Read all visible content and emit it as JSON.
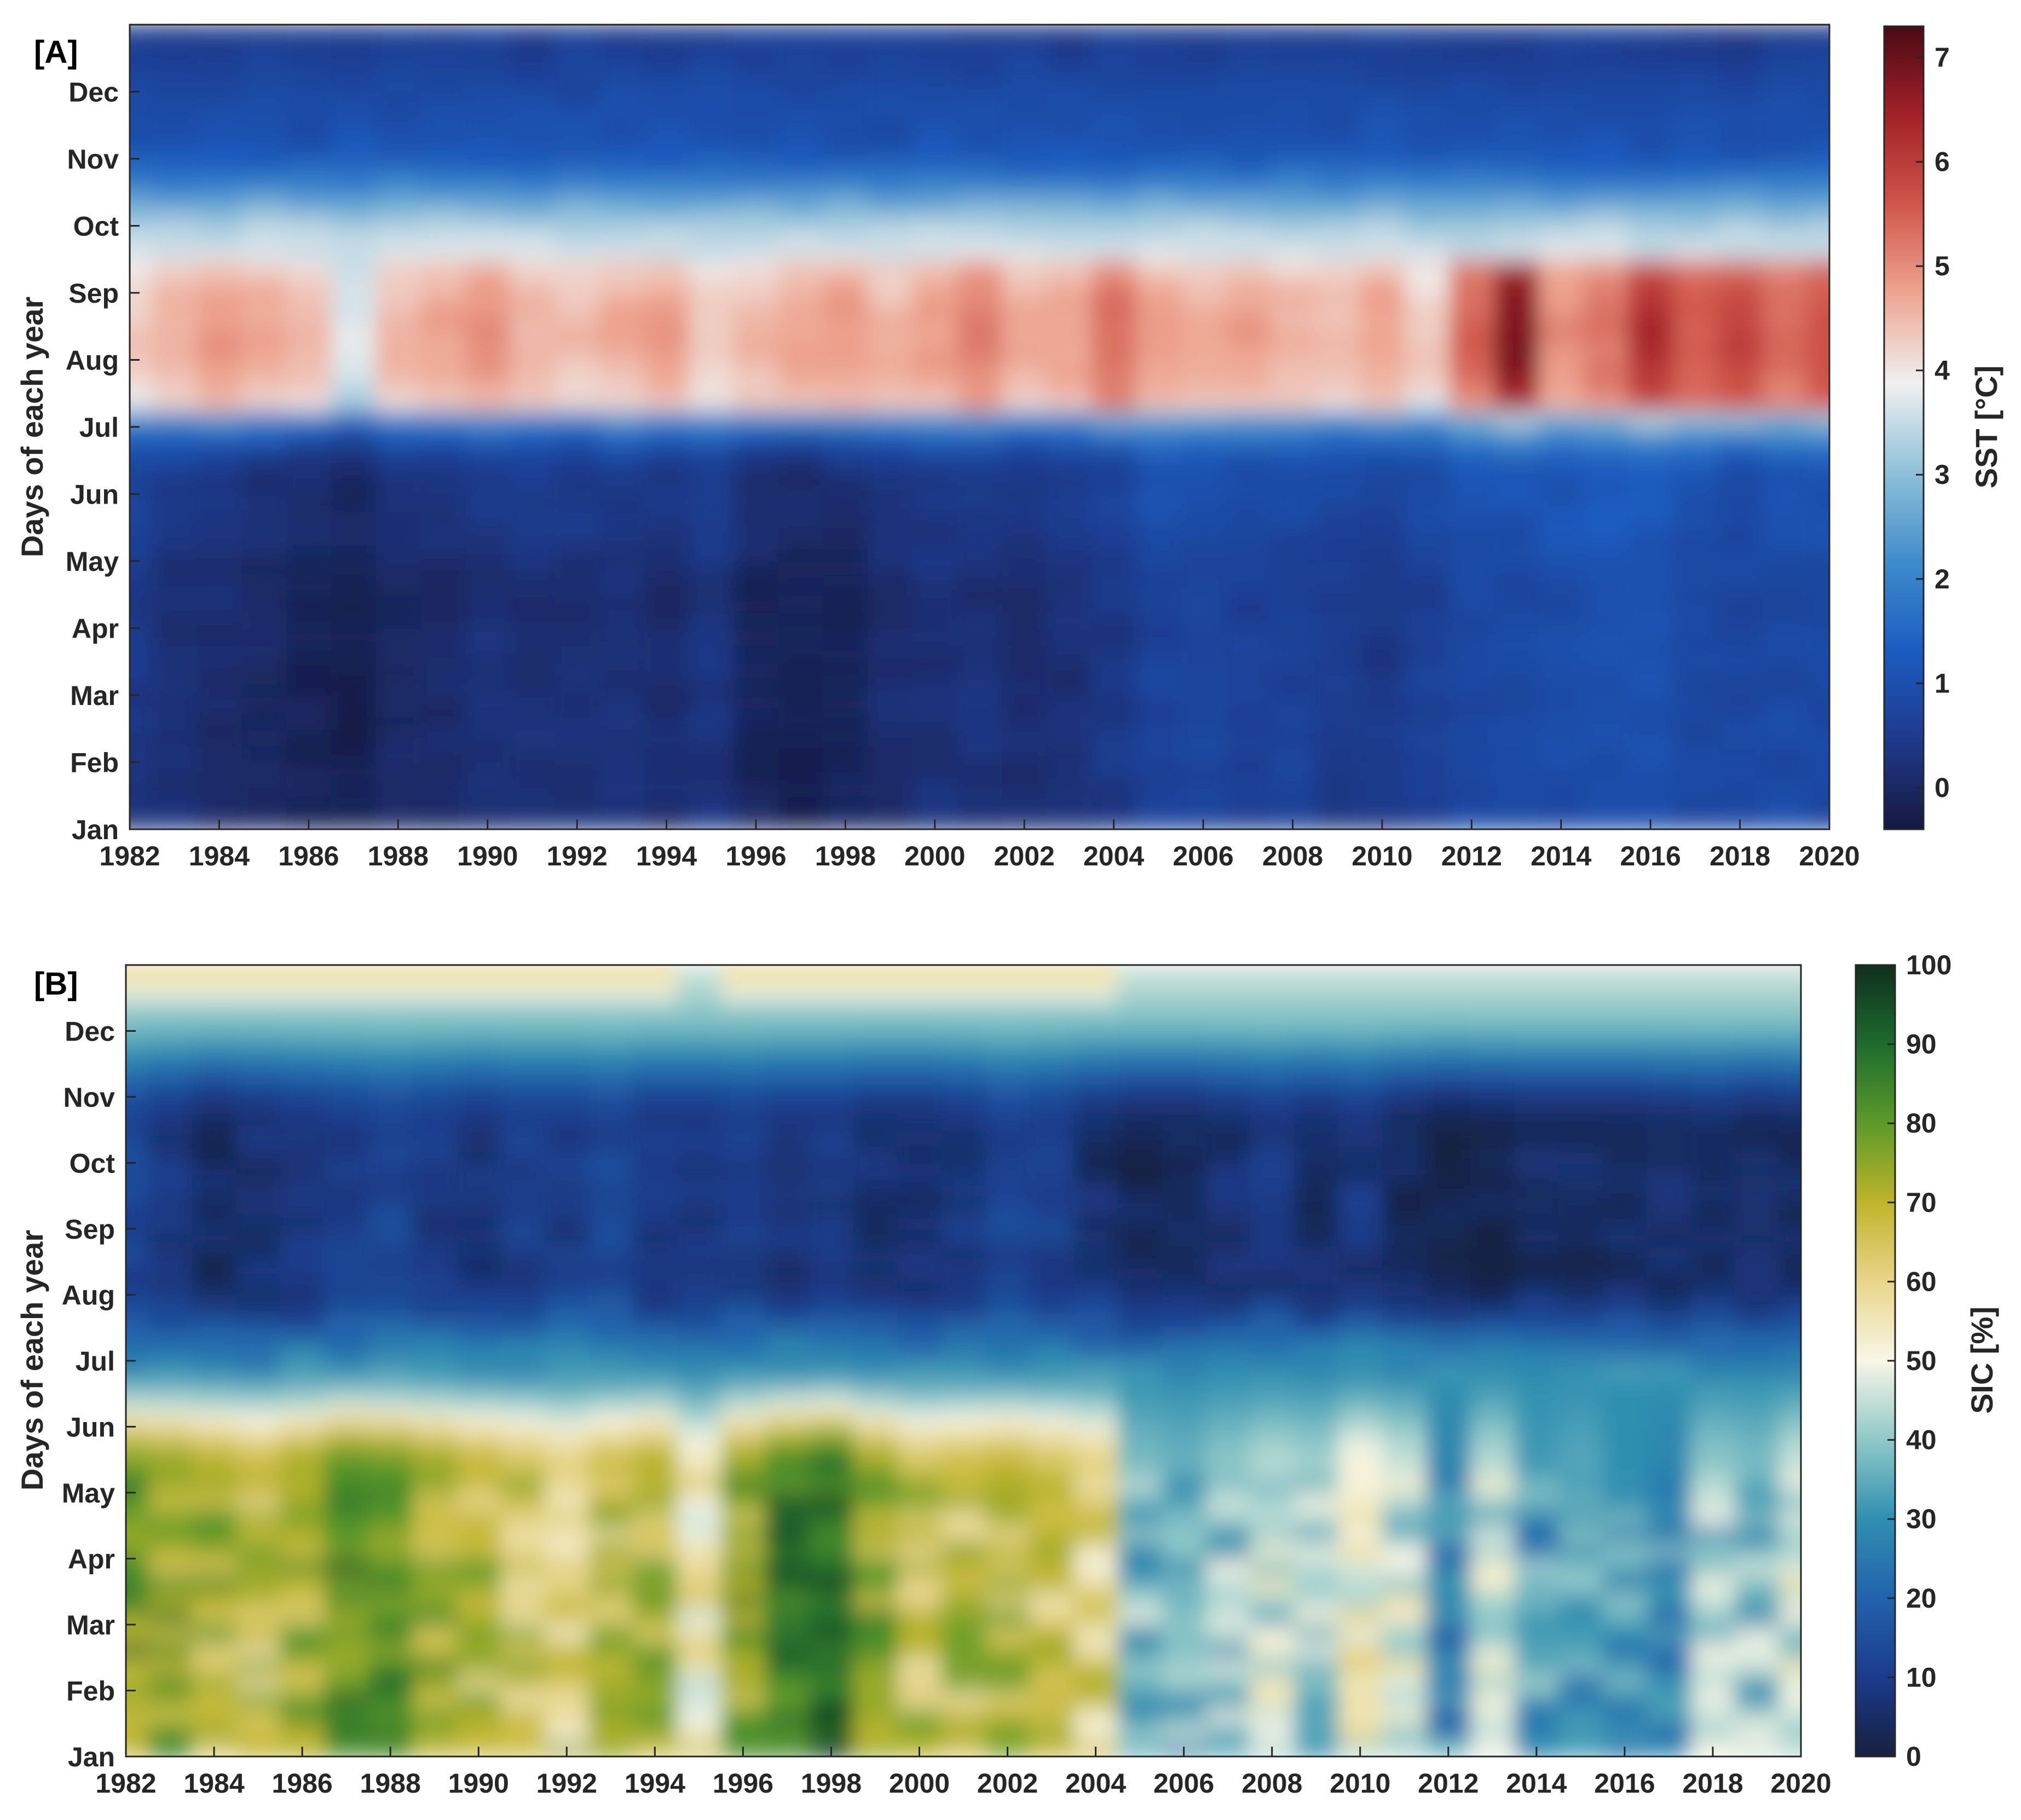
{
  "chart_data": [
    {
      "panel_label": "[A]",
      "type": "heatmap",
      "xlabel": "",
      "ylabel": "Days of each year",
      "x_ticks": [
        "1982",
        "1984",
        "1986",
        "1988",
        "1990",
        "1992",
        "1994",
        "1996",
        "1998",
        "2000",
        "2002",
        "2004",
        "2006",
        "2008",
        "2010",
        "2012",
        "2014",
        "2016",
        "2018",
        "2020"
      ],
      "y_ticks": [
        "Jan",
        "Feb",
        "Mar",
        "Apr",
        "May",
        "Jun",
        "Jul",
        "Aug",
        "Sep",
        "Oct",
        "Nov",
        "Dec"
      ],
      "xlim": [
        1982,
        2020
      ],
      "colorbar": {
        "label": "SST [°C]",
        "range": [
          -0.4,
          7.3
        ],
        "ticks": [
          "0",
          "1",
          "2",
          "3",
          "4",
          "5",
          "6",
          "7"
        ],
        "colormap": [
          "#16193f",
          "#1f3a8c",
          "#1b5cc0",
          "#3f8ccc",
          "#8fc0d8",
          "#f0f0f0",
          "#eea590",
          "#d0564a",
          "#a32129",
          "#4a0a14"
        ]
      },
      "years": [
        1982,
        1983,
        1984,
        1985,
        1986,
        1987,
        1988,
        1989,
        1990,
        1991,
        1992,
        1993,
        1994,
        1995,
        1996,
        1997,
        1998,
        1999,
        2000,
        2001,
        2002,
        2003,
        2004,
        2005,
        2006,
        2007,
        2008,
        2009,
        2010,
        2011,
        2012,
        2013,
        2014,
        2015,
        2016,
        2017,
        2018,
        2019,
        2020
      ],
      "months": [
        "Jan",
        "Feb",
        "Mar",
        "Apr",
        "May",
        "Jun",
        "Jul",
        "Aug",
        "Sep",
        "Oct",
        "Nov",
        "Dec"
      ],
      "summer_peak_by_year": [
        4.3,
        4.6,
        4.9,
        4.7,
        4.5,
        3.8,
        4.6,
        4.8,
        5.0,
        4.6,
        4.5,
        4.7,
        4.8,
        4.3,
        4.6,
        4.8,
        4.9,
        4.6,
        4.8,
        5.2,
        4.7,
        4.8,
        5.4,
        4.8,
        4.7,
        4.8,
        4.6,
        4.5,
        4.8,
        4.3,
        5.5,
        6.8,
        5.0,
        5.3,
        6.3,
        5.6,
        5.9,
        5.4,
        5.8
      ],
      "winter_min_by_year": [
        0.4,
        0.2,
        0.1,
        0.0,
        -0.1,
        -0.2,
        0.0,
        0.1,
        0.2,
        0.2,
        0.2,
        0.2,
        0.1,
        0.3,
        -0.1,
        -0.2,
        -0.1,
        0.1,
        0.2,
        0.2,
        0.1,
        0.2,
        0.4,
        0.7,
        0.7,
        0.6,
        0.6,
        0.5,
        0.4,
        0.6,
        0.8,
        0.8,
        0.9,
        1.0,
        1.0,
        0.8,
        0.7,
        0.8,
        0.8
      ]
    },
    {
      "panel_label": "[B]",
      "type": "heatmap",
      "xlabel": "",
      "ylabel": "Days of each year",
      "x_ticks": [
        "1982",
        "1984",
        "1986",
        "1988",
        "1990",
        "1992",
        "1994",
        "1996",
        "1998",
        "2000",
        "2002",
        "2004",
        "2006",
        "2008",
        "2010",
        "2012",
        "2014",
        "2016",
        "2018",
        "2020"
      ],
      "y_ticks": [
        "Jan",
        "Feb",
        "Mar",
        "Apr",
        "May",
        "Jun",
        "Jul",
        "Aug",
        "Sep",
        "Oct",
        "Nov",
        "Dec"
      ],
      "xlim": [
        1982,
        2020
      ],
      "colorbar": {
        "label": "SIC [%]",
        "range": [
          0,
          100
        ],
        "ticks": [
          "0",
          "10",
          "20",
          "30",
          "40",
          "50",
          "60",
          "70",
          "80",
          "90",
          "100"
        ],
        "colormap": [
          "#17203f",
          "#1b3b8c",
          "#2262ad",
          "#2f8fb0",
          "#8fc8c8",
          "#f8f6e6",
          "#e8d58a",
          "#bfb42b",
          "#5c9a2a",
          "#1e6b2e",
          "#0f2f1d"
        ]
      },
      "years": [
        1982,
        1983,
        1984,
        1985,
        1986,
        1987,
        1988,
        1989,
        1990,
        1991,
        1992,
        1993,
        1994,
        1995,
        1996,
        1997,
        1998,
        1999,
        2000,
        2001,
        2002,
        2003,
        2004,
        2005,
        2006,
        2007,
        2008,
        2009,
        2010,
        2011,
        2012,
        2013,
        2014,
        2015,
        2016,
        2017,
        2018,
        2019,
        2020
      ],
      "months": [
        "Jan",
        "Feb",
        "Mar",
        "Apr",
        "May",
        "Jun",
        "Jul",
        "Aug",
        "Sep",
        "Oct",
        "Nov",
        "Dec"
      ],
      "winter_ice_by_year": [
        78,
        76,
        72,
        68,
        74,
        82,
        80,
        75,
        70,
        66,
        62,
        68,
        72,
        55,
        75,
        85,
        90,
        75,
        66,
        68,
        70,
        66,
        62,
        38,
        36,
        40,
        44,
        42,
        52,
        46,
        28,
        44,
        32,
        34,
        30,
        28,
        40,
        38,
        46
      ],
      "summer_ice_min_by_year": [
        12,
        8,
        4,
        6,
        8,
        10,
        12,
        10,
        8,
        10,
        10,
        12,
        8,
        8,
        10,
        8,
        8,
        6,
        6,
        8,
        12,
        10,
        6,
        4,
        4,
        6,
        8,
        6,
        8,
        4,
        2,
        3,
        4,
        4,
        4,
        5,
        6,
        4,
        5
      ]
    }
  ]
}
